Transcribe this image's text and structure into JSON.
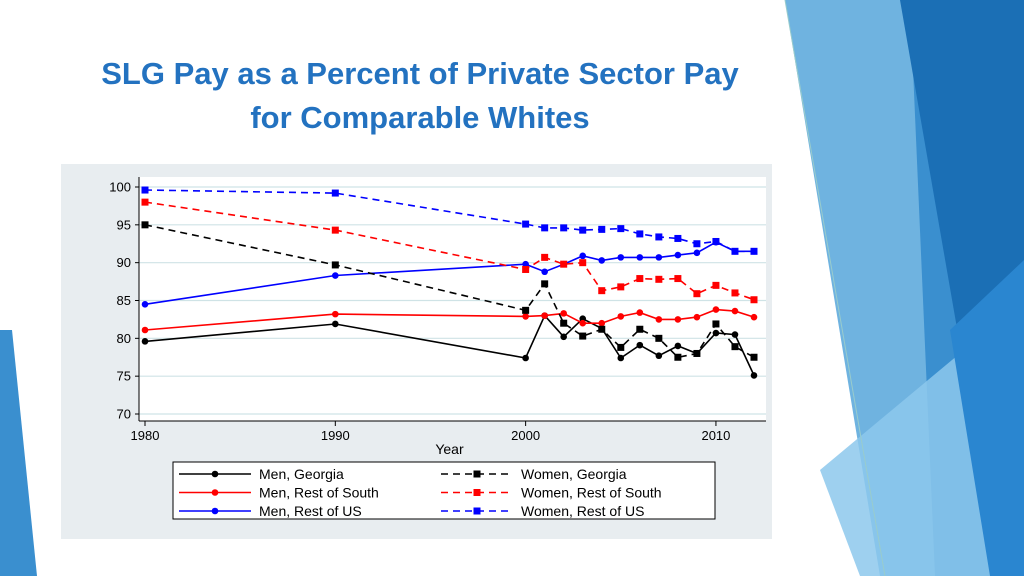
{
  "slide": {
    "title_line1": "SLG Pay as a Percent of Private Sector Pay",
    "title_line2": "for Comparable Whites"
  },
  "colors": {
    "title": "#2372c0",
    "black": "#000000",
    "red": "#ff0000",
    "blue": "#0000ff",
    "grid": "#cfe3e6",
    "panel": "#e8edf0"
  },
  "chart_data": {
    "type": "line",
    "title": "",
    "xlabel": "Year",
    "ylabel": "",
    "xlim": [
      1980,
      2012
    ],
    "ylim": [
      70,
      100
    ],
    "xticks": [
      1980,
      1990,
      2000,
      2010
    ],
    "yticks": [
      70,
      75,
      80,
      85,
      90,
      95,
      100
    ],
    "grid": true,
    "legend_position": "bottom",
    "series": [
      {
        "name": "Men, Georgia",
        "color": "#000000",
        "dash": false,
        "marker": "circle",
        "x": [
          1980,
          1990,
          2000,
          2001,
          2002,
          2003,
          2004,
          2005,
          2006,
          2007,
          2008,
          2009,
          2010,
          2011,
          2012
        ],
        "y": [
          79.6,
          81.9,
          77.4,
          83.0,
          80.2,
          82.6,
          81.3,
          77.4,
          79.1,
          77.7,
          79.0,
          78.0,
          80.7,
          80.5,
          75.1
        ]
      },
      {
        "name": "Men, Rest of South",
        "color": "#ff0000",
        "dash": false,
        "marker": "circle",
        "x": [
          1980,
          1990,
          2000,
          2001,
          2002,
          2003,
          2004,
          2005,
          2006,
          2007,
          2008,
          2009,
          2010,
          2011,
          2012
        ],
        "y": [
          81.1,
          83.2,
          82.9,
          83.0,
          83.3,
          82.0,
          82.0,
          82.9,
          83.4,
          82.5,
          82.5,
          82.8,
          83.8,
          83.6,
          82.8
        ]
      },
      {
        "name": "Men, Rest of US",
        "color": "#0000ff",
        "dash": false,
        "marker": "circle",
        "x": [
          1980,
          1990,
          2000,
          2001,
          2002,
          2003,
          2004,
          2005,
          2006,
          2007,
          2008,
          2009,
          2010,
          2011,
          2012
        ],
        "y": [
          84.5,
          88.3,
          89.8,
          88.8,
          89.8,
          90.9,
          90.3,
          90.7,
          90.7,
          90.7,
          91.0,
          91.3,
          92.7,
          91.5,
          91.5
        ]
      },
      {
        "name": "Women, Georgia",
        "color": "#000000",
        "dash": true,
        "marker": "square",
        "x": [
          1980,
          1990,
          2000,
          2001,
          2002,
          2003,
          2004,
          2005,
          2006,
          2007,
          2008,
          2009,
          2010,
          2011,
          2012
        ],
        "y": [
          95.0,
          89.7,
          83.7,
          87.2,
          82.0,
          80.3,
          81.2,
          78.8,
          81.2,
          80.0,
          77.5,
          78.0,
          81.9,
          78.9,
          77.5
        ]
      },
      {
        "name": "Women, Rest of South",
        "color": "#ff0000",
        "dash": true,
        "marker": "square",
        "x": [
          1980,
          1990,
          2000,
          2001,
          2002,
          2003,
          2004,
          2005,
          2006,
          2007,
          2008,
          2009,
          2010,
          2011,
          2012
        ],
        "y": [
          98.0,
          94.3,
          89.1,
          90.7,
          89.8,
          90.0,
          86.3,
          86.8,
          87.9,
          87.8,
          87.9,
          85.9,
          87.0,
          86.0,
          85.1
        ]
      },
      {
        "name": "Women, Rest of US",
        "color": "#0000ff",
        "dash": true,
        "marker": "square",
        "x": [
          1980,
          1990,
          2000,
          2001,
          2002,
          2003,
          2004,
          2005,
          2006,
          2007,
          2008,
          2009,
          2010,
          2011,
          2012
        ],
        "y": [
          99.6,
          99.2,
          95.1,
          94.6,
          94.6,
          94.3,
          94.4,
          94.5,
          93.8,
          93.4,
          93.2,
          92.5,
          92.8,
          91.5,
          91.5
        ]
      }
    ]
  }
}
